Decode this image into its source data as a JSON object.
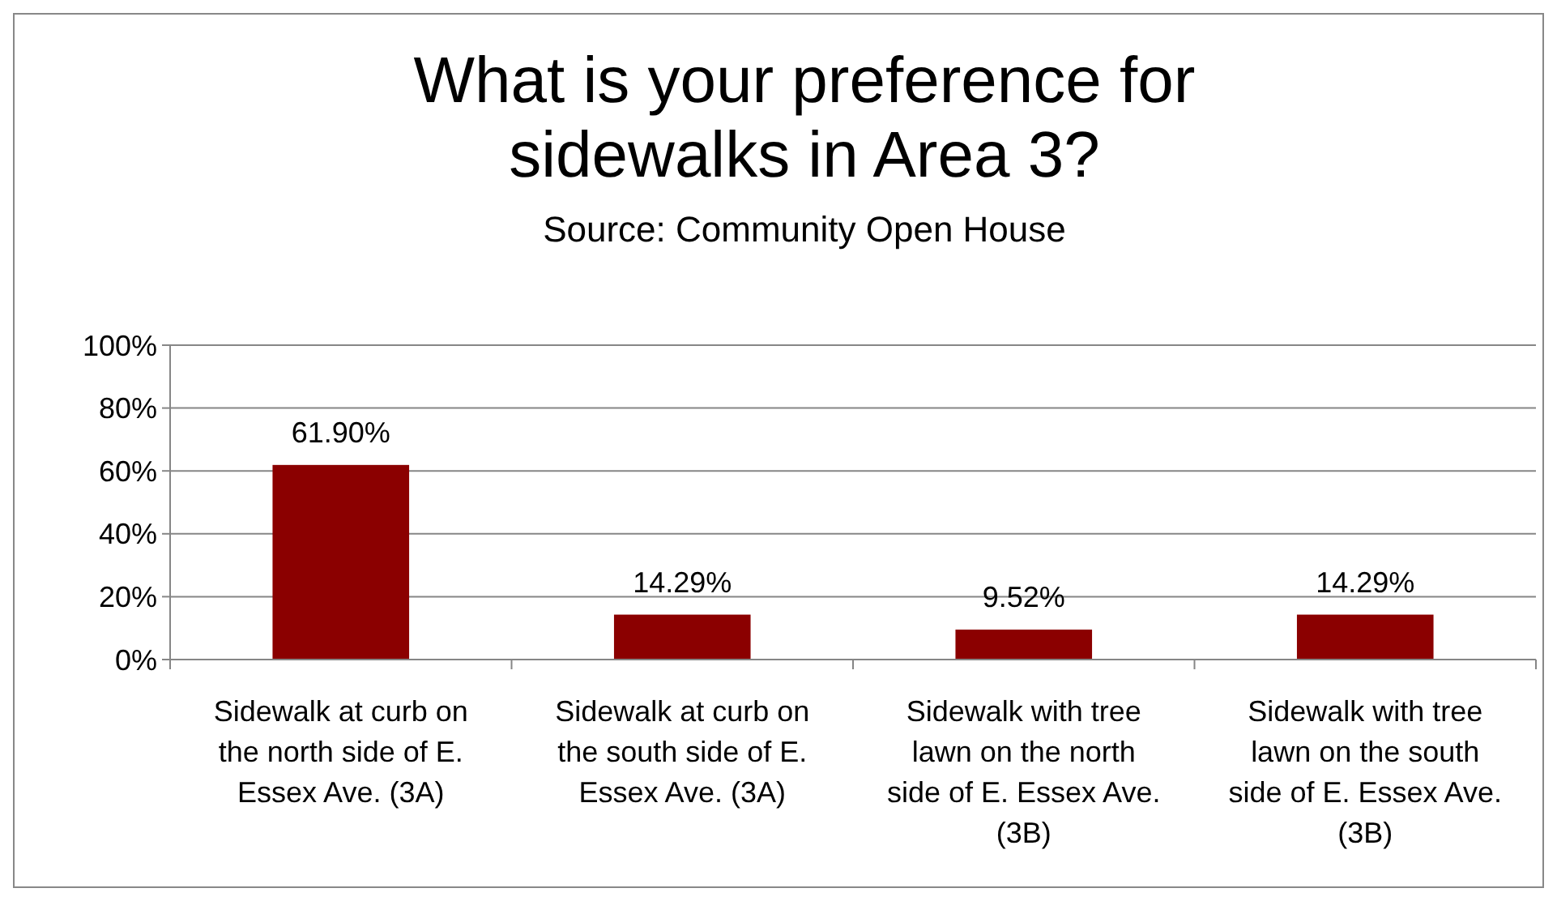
{
  "chart_data": {
    "type": "bar",
    "title": "What is your preference for sidewalks in Area 3?",
    "subtitle": "Source: Community Open House",
    "categories": [
      "Sidewalk at curb on the north side of E. Essex Ave. (3A)",
      "Sidewalk at curb on the south side of E. Essex Ave. (3A)",
      "Sidewalk with tree lawn on the north side of E. Essex Ave. (3B)",
      "Sidewalk with tree lawn on the south side of E. Essex Ave. (3B)"
    ],
    "values": [
      61.9,
      14.29,
      9.52,
      14.29
    ],
    "value_labels": [
      "61.90%",
      "14.29%",
      "9.52%",
      "14.29%"
    ],
    "color": "#8b0000",
    "ylim": [
      0,
      100
    ],
    "yticks": [
      {
        "value": 0,
        "label": "0%"
      },
      {
        "value": 20,
        "label": "20%"
      },
      {
        "value": 40,
        "label": "40%"
      },
      {
        "value": 60,
        "label": "60%"
      },
      {
        "value": 80,
        "label": "80%"
      },
      {
        "value": 100,
        "label": "100%"
      }
    ],
    "grid": "y"
  }
}
